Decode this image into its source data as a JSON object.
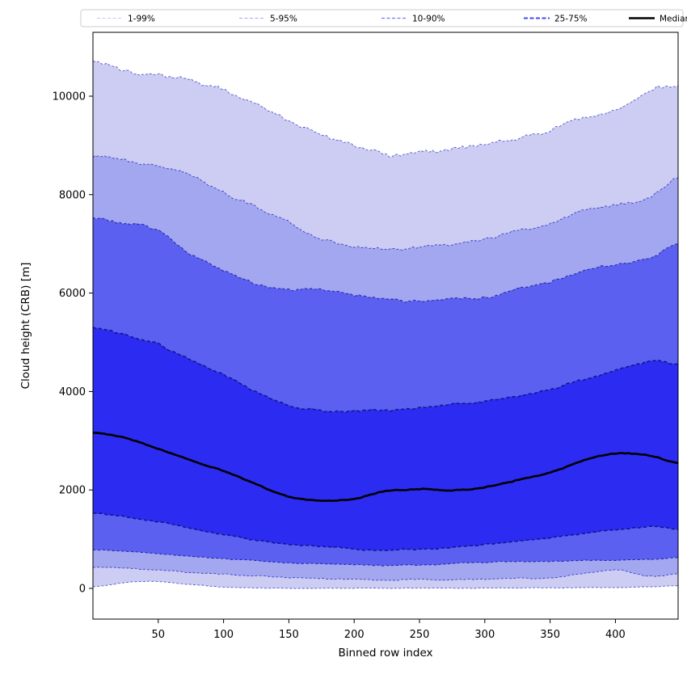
{
  "figure": {
    "kind": "percentile-fan-chart"
  },
  "chart_data": {
    "type": "area",
    "title": "",
    "xlabel": "Binned row index",
    "ylabel": "Cloud height (CRB) [m]",
    "xlim": [
      0,
      448
    ],
    "ylim": [
      -624,
      11297
    ],
    "x_ticks": [
      50,
      100,
      150,
      200,
      250,
      300,
      350,
      400
    ],
    "y_ticks": [
      0,
      2000,
      4000,
      6000,
      8000,
      10000
    ],
    "grid": false,
    "legend_position": "top",
    "x": [
      0,
      25,
      50,
      75,
      100,
      125,
      150,
      175,
      200,
      225,
      250,
      275,
      300,
      325,
      350,
      375,
      400,
      425,
      448
    ],
    "series": [
      {
        "name": "p1",
        "role": "percentile-1",
        "values": [
          30,
          120,
          140,
          80,
          30,
          10,
          5,
          5,
          5,
          5,
          5,
          5,
          5,
          10,
          10,
          15,
          20,
          30,
          60
        ]
      },
      {
        "name": "p5",
        "role": "percentile-5",
        "values": [
          430,
          410,
          380,
          330,
          290,
          250,
          220,
          195,
          180,
          170,
          175,
          180,
          190,
          200,
          215,
          300,
          380,
          250,
          300
        ]
      },
      {
        "name": "p10",
        "role": "percentile-10",
        "values": [
          790,
          760,
          710,
          650,
          600,
          560,
          520,
          500,
          480,
          470,
          480,
          500,
          530,
          545,
          555,
          565,
          575,
          590,
          620
        ]
      },
      {
        "name": "p25",
        "role": "percentile-25",
        "values": [
          1530,
          1460,
          1350,
          1220,
          1090,
          980,
          900,
          840,
          800,
          770,
          790,
          830,
          890,
          960,
          1030,
          1110,
          1190,
          1260,
          1210
        ]
      },
      {
        "name": "median",
        "role": "median",
        "values": [
          3170,
          3060,
          2840,
          2600,
          2380,
          2120,
          1870,
          1780,
          1820,
          1980,
          2010,
          1990,
          2050,
          2200,
          2360,
          2600,
          2740,
          2700,
          2550
        ]
      },
      {
        "name": "p75",
        "role": "percentile-75",
        "values": [
          5300,
          5150,
          4950,
          4650,
          4350,
          4000,
          3700,
          3620,
          3600,
          3620,
          3680,
          3740,
          3790,
          3900,
          4050,
          4250,
          4420,
          4600,
          4580
        ]
      },
      {
        "name": "p90",
        "role": "percentile-90",
        "values": [
          7520,
          7420,
          7250,
          6800,
          6450,
          6180,
          6080,
          6100,
          5950,
          5870,
          5850,
          5870,
          5890,
          6100,
          6220,
          6450,
          6570,
          6680,
          6980
        ]
      },
      {
        "name": "p95",
        "role": "percentile-95",
        "values": [
          8790,
          8700,
          8560,
          8380,
          8050,
          7750,
          7450,
          7100,
          6950,
          6900,
          6950,
          7000,
          7080,
          7280,
          7420,
          7680,
          7800,
          7960,
          8340
        ]
      },
      {
        "name": "p99",
        "role": "percentile-99",
        "values": [
          10690,
          10500,
          10430,
          10330,
          10120,
          9850,
          9480,
          9210,
          9030,
          8820,
          8870,
          8920,
          9010,
          9150,
          9300,
          9560,
          9720,
          10080,
          10230
        ]
      }
    ],
    "bands": [
      {
        "label": "1-99%",
        "lower": "p1",
        "upper": "p99",
        "fill": "#cdcdf3",
        "edge": "#565bd0",
        "edge_width": 0.9,
        "dash": "3,2.2",
        "legend_color": "#c9cbf4",
        "legend_width": 1.0,
        "legend_dash": "4,2.5"
      },
      {
        "label": "5-95%",
        "lower": "p5",
        "upper": "p95",
        "fill": "#a3a7f0",
        "edge": "#3d42c6",
        "edge_width": 0.9,
        "dash": "3,2.2",
        "legend_color": "#a3a7f0",
        "legend_width": 1.1,
        "legend_dash": "4,2.5"
      },
      {
        "label": "10-90%",
        "lower": "p10",
        "upper": "p90",
        "fill": "#5c60f0",
        "edge": "#262bb0",
        "edge_width": 1.1,
        "dash": "3.5,2.4",
        "legend_color": "#7478ee",
        "legend_width": 1.3,
        "legend_dash": "4,2.5"
      },
      {
        "label": "25-75%",
        "lower": "p25",
        "upper": "p75",
        "fill": "#2b2bf2",
        "edge": "#111690",
        "edge_width": 1.5,
        "dash": "4.5,2.6",
        "legend_color": "#4348ee",
        "legend_width": 2.0,
        "legend_dash": "5,2.5"
      }
    ],
    "median_style": {
      "label": "Median",
      "color": "#000000",
      "width": 2.6,
      "series": "median"
    }
  }
}
